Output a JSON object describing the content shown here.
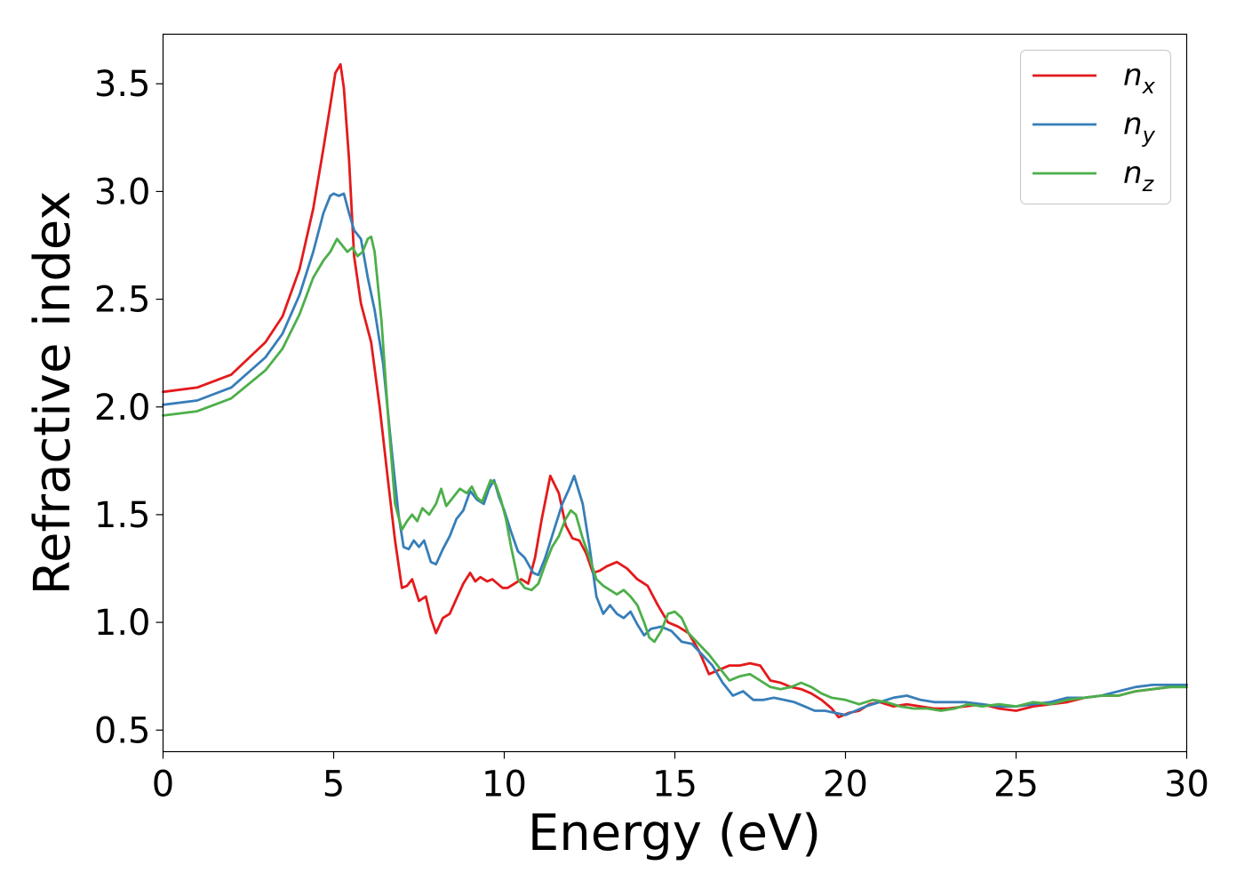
{
  "chart_data": {
    "type": "line",
    "title": "",
    "xlabel": "Energy (eV)",
    "ylabel": "Refractive index",
    "xlim": [
      0,
      30
    ],
    "ylim": [
      0.4,
      3.73
    ],
    "xticks": [
      0,
      5,
      10,
      15,
      20,
      25,
      30
    ],
    "xtick_labels": [
      "0",
      "5",
      "10",
      "15",
      "20",
      "25",
      "30"
    ],
    "yticks": [
      0.5,
      1.0,
      1.5,
      2.0,
      2.5,
      3.0,
      3.5
    ],
    "ytick_labels": [
      "0.5",
      "1.0",
      "1.5",
      "2.0",
      "2.5",
      "3.0",
      "3.5"
    ],
    "grid": false,
    "legend_position": "top-right",
    "series": [
      {
        "name": "n_x",
        "legend_base": "n",
        "legend_sub": "x",
        "color": "#e41a1c",
        "x": [
          0,
          1,
          2,
          3,
          3.5,
          4,
          4.4,
          4.7,
          4.9,
          5.05,
          5.2,
          5.3,
          5.45,
          5.6,
          5.8,
          6.1,
          6.35,
          6.6,
          6.8,
          7.0,
          7.15,
          7.3,
          7.5,
          7.7,
          7.85,
          8.0,
          8.2,
          8.4,
          8.6,
          8.8,
          9.0,
          9.15,
          9.3,
          9.5,
          9.65,
          9.8,
          9.95,
          10.1,
          10.3,
          10.5,
          10.7,
          10.9,
          11.1,
          11.35,
          11.6,
          11.8,
          12.0,
          12.2,
          12.4,
          12.6,
          12.8,
          13.0,
          13.3,
          13.6,
          13.9,
          14.2,
          14.5,
          14.8,
          15.1,
          15.4,
          15.7,
          16.0,
          16.3,
          16.6,
          16.9,
          17.2,
          17.5,
          17.8,
          18.1,
          18.4,
          18.7,
          19.0,
          19.3,
          19.6,
          19.8,
          20.1,
          20.4,
          20.7,
          21.0,
          21.4,
          21.8,
          22.2,
          22.6,
          23.0,
          23.5,
          24.0,
          24.5,
          25.0,
          25.5,
          26.0,
          26.5,
          27.0,
          27.5,
          28.0,
          28.5,
          29.0,
          29.5,
          30.0
        ],
        "y": [
          2.07,
          2.09,
          2.15,
          2.3,
          2.42,
          2.64,
          2.92,
          3.2,
          3.4,
          3.55,
          3.59,
          3.48,
          3.15,
          2.7,
          2.48,
          2.3,
          2.0,
          1.65,
          1.38,
          1.16,
          1.17,
          1.2,
          1.1,
          1.12,
          1.02,
          0.95,
          1.02,
          1.04,
          1.11,
          1.18,
          1.23,
          1.19,
          1.21,
          1.19,
          1.2,
          1.18,
          1.16,
          1.16,
          1.18,
          1.2,
          1.18,
          1.3,
          1.48,
          1.68,
          1.6,
          1.45,
          1.39,
          1.38,
          1.32,
          1.23,
          1.24,
          1.26,
          1.28,
          1.25,
          1.2,
          1.17,
          1.08,
          1.0,
          0.98,
          0.95,
          0.87,
          0.76,
          0.78,
          0.8,
          0.8,
          0.81,
          0.8,
          0.73,
          0.72,
          0.7,
          0.69,
          0.67,
          0.64,
          0.6,
          0.56,
          0.58,
          0.59,
          0.62,
          0.63,
          0.61,
          0.62,
          0.61,
          0.6,
          0.6,
          0.61,
          0.62,
          0.6,
          0.59,
          0.61,
          0.62,
          0.63,
          0.65,
          0.66,
          0.66,
          0.68,
          0.69,
          0.7,
          0.71
        ]
      },
      {
        "name": "n_y",
        "legend_base": "n",
        "legend_sub": "y",
        "color": "#377eb8",
        "x": [
          0,
          1,
          2,
          3,
          3.5,
          4,
          4.4,
          4.7,
          4.9,
          5.0,
          5.15,
          5.3,
          5.45,
          5.6,
          5.8,
          6.0,
          6.2,
          6.45,
          6.7,
          6.9,
          7.05,
          7.2,
          7.35,
          7.5,
          7.65,
          7.85,
          8.0,
          8.2,
          8.4,
          8.6,
          8.8,
          9.0,
          9.2,
          9.4,
          9.55,
          9.7,
          9.85,
          10.0,
          10.2,
          10.4,
          10.6,
          10.85,
          11.0,
          11.2,
          11.5,
          11.7,
          11.9,
          12.05,
          12.3,
          12.5,
          12.7,
          12.9,
          13.1,
          13.3,
          13.5,
          13.7,
          13.9,
          14.1,
          14.3,
          14.6,
          14.9,
          15.2,
          15.5,
          15.8,
          16.1,
          16.4,
          16.7,
          17.0,
          17.3,
          17.6,
          17.9,
          18.2,
          18.5,
          18.8,
          19.1,
          19.4,
          19.7,
          20.0,
          20.3,
          20.6,
          21.0,
          21.4,
          21.8,
          22.2,
          22.6,
          23.0,
          23.5,
          24.0,
          24.5,
          25.0,
          25.5,
          26.0,
          26.5,
          27.0,
          27.5,
          28.0,
          28.5,
          29.0,
          29.5,
          30.0
        ],
        "y": [
          2.01,
          2.03,
          2.09,
          2.23,
          2.34,
          2.52,
          2.72,
          2.9,
          2.98,
          2.99,
          2.98,
          2.99,
          2.9,
          2.82,
          2.78,
          2.6,
          2.45,
          2.2,
          1.8,
          1.5,
          1.35,
          1.34,
          1.38,
          1.35,
          1.38,
          1.28,
          1.27,
          1.34,
          1.4,
          1.48,
          1.52,
          1.61,
          1.57,
          1.55,
          1.62,
          1.66,
          1.58,
          1.52,
          1.42,
          1.33,
          1.3,
          1.23,
          1.22,
          1.3,
          1.45,
          1.55,
          1.62,
          1.68,
          1.55,
          1.35,
          1.12,
          1.04,
          1.08,
          1.04,
          1.02,
          1.05,
          0.99,
          0.94,
          0.97,
          0.98,
          0.96,
          0.91,
          0.9,
          0.85,
          0.8,
          0.72,
          0.66,
          0.68,
          0.64,
          0.64,
          0.65,
          0.64,
          0.63,
          0.61,
          0.59,
          0.59,
          0.58,
          0.57,
          0.59,
          0.61,
          0.63,
          0.65,
          0.66,
          0.64,
          0.63,
          0.63,
          0.63,
          0.62,
          0.61,
          0.61,
          0.62,
          0.63,
          0.65,
          0.65,
          0.66,
          0.68,
          0.7,
          0.71,
          0.71,
          0.71
        ]
      },
      {
        "name": "n_z",
        "legend_base": "n",
        "legend_sub": "z",
        "color": "#4daf4a",
        "x": [
          0,
          1,
          2,
          3,
          3.5,
          4,
          4.4,
          4.7,
          4.9,
          5.1,
          5.25,
          5.4,
          5.55,
          5.7,
          5.85,
          6.0,
          6.1,
          6.2,
          6.4,
          6.6,
          6.8,
          7.0,
          7.15,
          7.3,
          7.45,
          7.6,
          7.8,
          8.0,
          8.15,
          8.3,
          8.5,
          8.7,
          8.9,
          9.05,
          9.2,
          9.35,
          9.5,
          9.6,
          9.75,
          9.9,
          10.05,
          10.2,
          10.4,
          10.6,
          10.8,
          11.0,
          11.2,
          11.4,
          11.6,
          11.8,
          11.95,
          12.1,
          12.3,
          12.5,
          12.7,
          12.9,
          13.1,
          13.3,
          13.5,
          13.7,
          13.9,
          14.1,
          14.25,
          14.4,
          14.6,
          14.8,
          15.0,
          15.2,
          15.4,
          15.7,
          16.0,
          16.3,
          16.6,
          16.9,
          17.2,
          17.5,
          17.8,
          18.1,
          18.4,
          18.7,
          19.0,
          19.3,
          19.6,
          20.0,
          20.4,
          20.8,
          21.2,
          21.6,
          22.0,
          22.4,
          22.8,
          23.2,
          23.6,
          24.0,
          24.5,
          25.0,
          25.5,
          26.0,
          26.5,
          27.0,
          27.5,
          28.0,
          28.5,
          29.0,
          29.5,
          30.0
        ],
        "y": [
          1.96,
          1.98,
          2.04,
          2.17,
          2.27,
          2.43,
          2.6,
          2.68,
          2.72,
          2.78,
          2.75,
          2.72,
          2.74,
          2.7,
          2.72,
          2.78,
          2.79,
          2.72,
          2.4,
          1.95,
          1.55,
          1.43,
          1.47,
          1.5,
          1.47,
          1.53,
          1.5,
          1.55,
          1.62,
          1.54,
          1.58,
          1.62,
          1.6,
          1.63,
          1.58,
          1.56,
          1.62,
          1.66,
          1.64,
          1.57,
          1.48,
          1.35,
          1.2,
          1.16,
          1.15,
          1.18,
          1.27,
          1.35,
          1.4,
          1.48,
          1.52,
          1.5,
          1.39,
          1.3,
          1.2,
          1.17,
          1.15,
          1.13,
          1.15,
          1.12,
          1.08,
          1.0,
          0.93,
          0.91,
          0.96,
          1.04,
          1.05,
          1.02,
          0.95,
          0.9,
          0.85,
          0.79,
          0.73,
          0.75,
          0.76,
          0.73,
          0.7,
          0.69,
          0.7,
          0.72,
          0.7,
          0.67,
          0.65,
          0.64,
          0.62,
          0.64,
          0.63,
          0.61,
          0.6,
          0.6,
          0.59,
          0.6,
          0.62,
          0.61,
          0.62,
          0.61,
          0.63,
          0.62,
          0.64,
          0.65,
          0.66,
          0.66,
          0.68,
          0.69,
          0.7,
          0.7
        ]
      }
    ]
  }
}
